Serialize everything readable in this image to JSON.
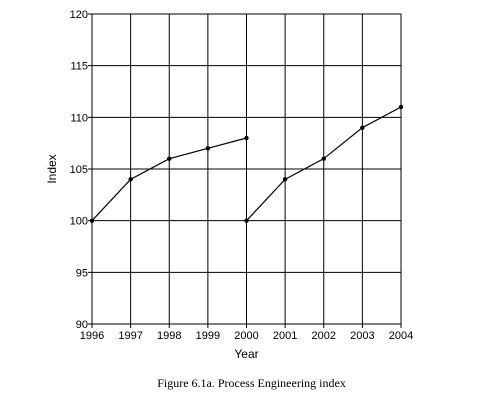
{
  "chart_data": {
    "type": "line",
    "xlabel": "Year",
    "ylabel": "Index",
    "x_ticks": [
      "1996",
      "1997",
      "1998",
      "1999",
      "2000",
      "2001",
      "2002",
      "2003",
      "2004"
    ],
    "y_ticks": [
      "90",
      "95",
      "100",
      "105",
      "110",
      "115",
      "120"
    ],
    "xlim": [
      1996,
      2004
    ],
    "ylim": [
      90,
      120
    ],
    "grid": true,
    "series": [
      {
        "points": [
          [
            1996,
            100
          ],
          [
            1997,
            104
          ],
          [
            1998,
            106
          ],
          [
            1999,
            107
          ],
          [
            2000,
            108
          ]
        ]
      },
      {
        "points": [
          [
            2000,
            100
          ],
          [
            2001,
            104
          ],
          [
            2002,
            106
          ],
          [
            2003,
            109
          ],
          [
            2004,
            111
          ]
        ]
      }
    ],
    "line_color": "#000000"
  },
  "caption": "Figure 6.1a.   Process Engineering index"
}
